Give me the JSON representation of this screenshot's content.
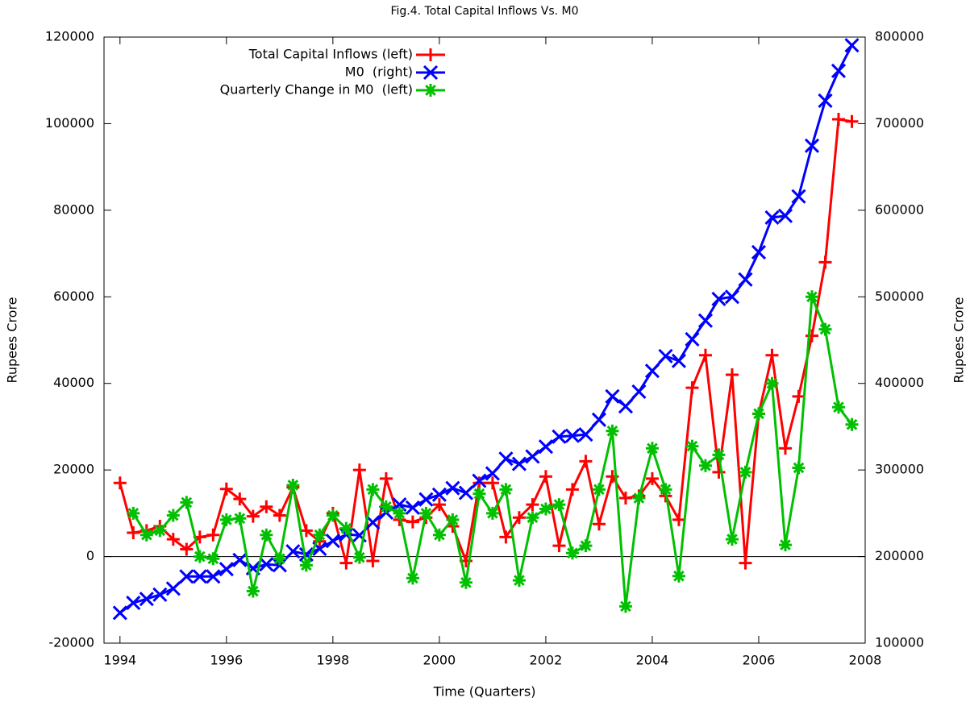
{
  "chart_data": {
    "type": "line",
    "title": "Fig.4. Total Capital Inflows Vs. M0",
    "xlabel": "Time (Quarters)",
    "ylabel": "Rupees Crore",
    "y2label": "Rupees Crore",
    "x": [
      1994,
      1994.25,
      1994.5,
      1994.75,
      1995,
      1995.25,
      1995.5,
      1995.75,
      1996,
      1996.25,
      1996.5,
      1996.75,
      1997,
      1997.25,
      1997.5,
      1997.75,
      1998,
      1998.25,
      1998.5,
      1998.75,
      1999,
      1999.25,
      1999.5,
      1999.75,
      2000,
      2000.25,
      2000.5,
      2000.75,
      2001,
      2001.25,
      2001.5,
      2001.75,
      2002,
      2002.25,
      2002.5,
      2002.75,
      2003,
      2003.25,
      2003.5,
      2003.75,
      2004,
      2004.25,
      2004.5,
      2004.75,
      2005,
      2005.25,
      2005.5,
      2005.75,
      2006,
      2006.25,
      2006.5,
      2006.75,
      2007,
      2007.25,
      2007.5,
      2007.75
    ],
    "series": [
      {
        "name": "Total Capital Inflows (left)",
        "color": "#ff0000",
        "marker": "plus",
        "axis": "y",
        "values": [
          17000,
          5500,
          6000,
          7000,
          4000,
          1700,
          4500,
          5000,
          15600,
          13300,
          9300,
          11500,
          9500,
          16000,
          6000,
          3500,
          10000,
          -1500,
          20000,
          -1000,
          18000,
          8500,
          8000,
          9000,
          12000,
          7000,
          -1000,
          17000,
          17000,
          4500,
          9000,
          12000,
          18500,
          2500,
          15500,
          22000,
          7500,
          18500,
          13500,
          14000,
          18000,
          14000,
          8500,
          39000,
          46500,
          19500,
          42000,
          -1500,
          33000,
          46500,
          25000,
          37000,
          51000,
          68000,
          101000,
          100500
        ]
      },
      {
        "name": "M0  (right)",
        "color": "#0000ff",
        "marker": "cross",
        "axis": "y2",
        "values": [
          135000,
          146500,
          151000,
          156000,
          163000,
          177000,
          177000,
          177000,
          185500,
          196000,
          186500,
          191000,
          190000,
          206000,
          202500,
          209000,
          218000,
          225500,
          224500,
          239500,
          251000,
          260000,
          256500,
          266000,
          271500,
          279000,
          273500,
          287500,
          296000,
          313000,
          307000,
          315500,
          327000,
          338500,
          339500,
          341000,
          358000,
          385000,
          373500,
          390500,
          414500,
          431500,
          426000,
          451000,
          472500,
          497500,
          500000,
          520000,
          551500,
          591500,
          593500,
          616000,
          674500,
          726500,
          761000,
          790500
        ]
      },
      {
        "name": "Quarterly Change in M0  (left)",
        "color": "#00c000",
        "marker": "star",
        "axis": "y",
        "values": [
          null,
          10000,
          5000,
          6000,
          9500,
          12500,
          0,
          -500,
          8500,
          8800,
          -8000,
          5000,
          -500,
          16500,
          -2000,
          5000,
          9500,
          6500,
          -200,
          15500,
          11500,
          10000,
          -5000,
          10000,
          5000,
          8500,
          -6000,
          14500,
          10000,
          15500,
          -5500,
          9000,
          11000,
          12000,
          800,
          2500,
          15500,
          29000,
          -11500,
          13500,
          25000,
          15500,
          -4500,
          25500,
          21000,
          23500,
          4000,
          19500,
          33000,
          40000,
          2700,
          20500,
          60000,
          52500,
          34500,
          30500
        ]
      }
    ],
    "xlim": [
      1993.7,
      2008
    ],
    "xticks": [
      1994,
      1996,
      1998,
      2000,
      2002,
      2004,
      2006,
      2008
    ],
    "ylim": [
      -20000,
      120000
    ],
    "yticks": [
      -20000,
      0,
      20000,
      40000,
      60000,
      80000,
      100000,
      120000
    ],
    "y2lim": [
      100000,
      800000
    ],
    "y2ticks": [
      100000,
      200000,
      300000,
      400000,
      500000,
      600000,
      700000,
      800000
    ],
    "zero_line": true,
    "grid": false,
    "legend": "top left"
  }
}
